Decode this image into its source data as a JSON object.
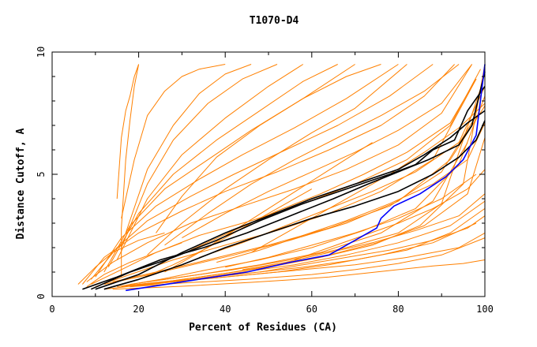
{
  "chart_data": {
    "type": "line",
    "title": "T1070-D4",
    "xlabel": "Percent of Residues (CA)",
    "ylabel": "Distance Cutoff, A",
    "xlim": [
      0,
      100
    ],
    "ylim": [
      0,
      10
    ],
    "xticks": [
      0,
      20,
      40,
      60,
      80,
      100
    ],
    "yticks": [
      0,
      5,
      10
    ],
    "grid": false,
    "colors": {
      "orange": "#ff8000",
      "black": "#000000",
      "blue": "#0000ff"
    },
    "series": [
      {
        "color": "#ff8000",
        "x": [
          14,
          18,
          24,
          30,
          38,
          46,
          55,
          64,
          72,
          80,
          88,
          95,
          100
        ],
        "y": [
          0.3,
          0.33,
          0.37,
          0.42,
          0.5,
          0.58,
          0.68,
          0.8,
          0.95,
          1.1,
          1.25,
          1.35,
          1.5
        ]
      },
      {
        "color": "#ff8000",
        "x": [
          18,
          30,
          45,
          60,
          70,
          80,
          90,
          100
        ],
        "y": [
          0.4,
          0.55,
          0.7,
          0.9,
          1.1,
          1.35,
          1.7,
          2.4
        ]
      },
      {
        "color": "#ff8000",
        "x": [
          20,
          32,
          45,
          58,
          70,
          82,
          92,
          100
        ],
        "y": [
          0.5,
          0.7,
          0.95,
          1.2,
          1.5,
          1.9,
          2.6,
          3.6
        ]
      },
      {
        "color": "#ff8000",
        "x": [
          17,
          28,
          40,
          52,
          64,
          75,
          86,
          96,
          100
        ],
        "y": [
          0.45,
          0.65,
          0.95,
          1.3,
          1.7,
          2.2,
          2.9,
          4.2,
          6.5
        ]
      },
      {
        "color": "#ff8000",
        "x": [
          18,
          30,
          42,
          55,
          68,
          80,
          90,
          99
        ],
        "y": [
          0.5,
          0.8,
          1.1,
          1.5,
          2.0,
          2.6,
          3.8,
          8.5
        ]
      },
      {
        "color": "#ff8000",
        "x": [
          16,
          26,
          38,
          50,
          62,
          74,
          85,
          95,
          100
        ],
        "y": [
          0.4,
          0.6,
          0.9,
          1.2,
          1.6,
          2.1,
          2.9,
          4.6,
          9.5
        ]
      },
      {
        "color": "#ff8000",
        "x": [
          20,
          34,
          48,
          62,
          76,
          88,
          96
        ],
        "y": [
          0.55,
          0.9,
          1.3,
          1.8,
          2.6,
          3.9,
          6.3
        ]
      },
      {
        "color": "#ff8000",
        "x": [
          15,
          25,
          36,
          48,
          60,
          72,
          84,
          94,
          100
        ],
        "y": [
          0.4,
          0.7,
          1.1,
          1.5,
          2.0,
          2.7,
          3.6,
          5.4,
          8.2
        ]
      },
      {
        "color": "#ff8000",
        "x": [
          12,
          20,
          30,
          42,
          55,
          68,
          80,
          92,
          100
        ],
        "y": [
          0.5,
          0.8,
          1.2,
          1.7,
          2.3,
          3.0,
          3.9,
          5.6,
          7.8
        ]
      },
      {
        "color": "#ff8000",
        "x": [
          14,
          24,
          36,
          50,
          64,
          78,
          90,
          98
        ],
        "y": [
          0.6,
          1.0,
          1.5,
          2.1,
          2.8,
          3.7,
          5.1,
          7.4
        ]
      },
      {
        "color": "#ff8000",
        "x": [
          10,
          18,
          28,
          40,
          52,
          64,
          76,
          88,
          98
        ],
        "y": [
          0.4,
          0.9,
          1.5,
          2.1,
          2.7,
          3.4,
          4.3,
          5.6,
          8.9
        ]
      },
      {
        "color": "#ff8000",
        "x": [
          9,
          16,
          24,
          34,
          46,
          58,
          70,
          82,
          92,
          99
        ],
        "y": [
          0.5,
          1.1,
          1.8,
          2.5,
          3.1,
          3.8,
          4.6,
          5.6,
          7.0,
          9.3
        ]
      },
      {
        "color": "#ff8000",
        "x": [
          8,
          14,
          22,
          32,
          44,
          56,
          68,
          80,
          90,
          97
        ],
        "y": [
          0.6,
          1.4,
          2.2,
          3.0,
          3.7,
          4.4,
          5.2,
          6.2,
          7.5,
          9.5
        ]
      },
      {
        "color": "#ff8000",
        "x": [
          7,
          12,
          20,
          30,
          40,
          52,
          64,
          76,
          86,
          93
        ],
        "y": [
          0.5,
          1.6,
          2.6,
          3.5,
          4.3,
          5.1,
          6.0,
          7.0,
          8.2,
          9.5
        ]
      },
      {
        "color": "#ff8000",
        "x": [
          9,
          15,
          22,
          32,
          42,
          54,
          66,
          78,
          88
        ],
        "y": [
          0.7,
          2.0,
          3.1,
          4.1,
          5.0,
          6.0,
          7.0,
          8.2,
          9.5
        ]
      },
      {
        "color": "#ff8000",
        "x": [
          10,
          16,
          24,
          34,
          44,
          56,
          68,
          80
        ],
        "y": [
          0.8,
          2.4,
          3.7,
          4.8,
          5.8,
          6.9,
          8.1,
          9.5
        ]
      },
      {
        "color": "#ff8000",
        "x": [
          12,
          18,
          26,
          36,
          46,
          58,
          70
        ],
        "y": [
          1.0,
          2.9,
          4.4,
          5.6,
          6.8,
          8.1,
          9.5
        ]
      },
      {
        "color": "#ff8000",
        "x": [
          13,
          20,
          28,
          38,
          48,
          58,
          66
        ],
        "y": [
          1.2,
          3.4,
          5.0,
          6.4,
          7.6,
          8.8,
          9.5
        ]
      },
      {
        "color": "#ff8000",
        "x": [
          15,
          22,
          30,
          40,
          50,
          58
        ],
        "y": [
          1.5,
          4.0,
          5.8,
          7.3,
          8.6,
          9.5
        ]
      },
      {
        "color": "#ff8000",
        "x": [
          16,
          22,
          28,
          36,
          44,
          52
        ],
        "y": [
          2.0,
          4.6,
          6.4,
          7.9,
          8.9,
          9.5
        ]
      },
      {
        "color": "#ff8000",
        "x": [
          17,
          22,
          28,
          34,
          40,
          46
        ],
        "y": [
          2.6,
          5.2,
          7.0,
          8.3,
          9.1,
          9.5
        ]
      },
      {
        "color": "#ff8000",
        "x": [
          16,
          19,
          22,
          26,
          30,
          34,
          40
        ],
        "y": [
          3.2,
          5.6,
          7.4,
          8.4,
          9.0,
          9.3,
          9.5
        ]
      },
      {
        "color": "#ff8000",
        "x": [
          15,
          16,
          17,
          18,
          19,
          20
        ],
        "y": [
          4.0,
          6.5,
          7.6,
          8.2,
          9.0,
          9.5
        ]
      },
      {
        "color": "#ff8000",
        "x": [
          16,
          16,
          17,
          18,
          19,
          20
        ],
        "y": [
          0.8,
          2.8,
          5.6,
          7.2,
          8.6,
          9.5
        ]
      },
      {
        "color": "#ff8000",
        "x": [
          24,
          30,
          38,
          48,
          58,
          68,
          76
        ],
        "y": [
          2.6,
          4.1,
          5.7,
          7.0,
          8.1,
          9.0,
          9.5
        ]
      },
      {
        "color": "#ff8000",
        "x": [
          22,
          30,
          40,
          50,
          60,
          70,
          82
        ],
        "y": [
          1.7,
          3.0,
          4.4,
          5.6,
          6.7,
          7.7,
          9.5
        ]
      },
      {
        "color": "#ff8000",
        "x": [
          26,
          36,
          46,
          56,
          66,
          76,
          86,
          94
        ],
        "y": [
          2.1,
          3.4,
          4.6,
          5.6,
          6.5,
          7.4,
          8.4,
          9.5
        ]
      },
      {
        "color": "#ff8000",
        "x": [
          30,
          40,
          50,
          60,
          70,
          80,
          90,
          97
        ],
        "y": [
          2.4,
          3.4,
          4.3,
          5.1,
          5.9,
          6.8,
          7.9,
          9.5
        ]
      },
      {
        "color": "#ff8000",
        "x": [
          32,
          42,
          52,
          62,
          72,
          82,
          92,
          98
        ],
        "y": [
          1.9,
          2.7,
          3.5,
          4.2,
          5.0,
          5.9,
          7.1,
          8.9
        ]
      },
      {
        "color": "#ff8000",
        "x": [
          34,
          44,
          54,
          64,
          74,
          84,
          94,
          100
        ],
        "y": [
          1.6,
          2.2,
          2.9,
          3.6,
          4.3,
          5.1,
          6.3,
          8.6
        ]
      },
      {
        "color": "#ff8000",
        "x": [
          38,
          48,
          58,
          68,
          78,
          88,
          96,
          100
        ],
        "y": [
          1.4,
          1.9,
          2.5,
          3.1,
          3.8,
          4.6,
          5.6,
          7.1
        ]
      },
      {
        "color": "#ff8000",
        "x": [
          40,
          50,
          60,
          70,
          80,
          90,
          98
        ],
        "y": [
          1.2,
          1.6,
          2.1,
          2.6,
          3.2,
          4.0,
          5.0
        ]
      },
      {
        "color": "#ff8000",
        "x": [
          44,
          54,
          64,
          74,
          84,
          94,
          100
        ],
        "y": [
          1.1,
          1.4,
          1.8,
          2.2,
          2.7,
          3.3,
          4.2
        ]
      },
      {
        "color": "#ff8000",
        "x": [
          48,
          58,
          68,
          78,
          88,
          96,
          100
        ],
        "y": [
          1.0,
          1.3,
          1.6,
          1.9,
          2.3,
          2.8,
          3.3
        ]
      },
      {
        "color": "#ff8000",
        "x": [
          20,
          28,
          36,
          44,
          52,
          60
        ],
        "y": [
          0.7,
          1.3,
          2.0,
          2.8,
          3.6,
          4.4
        ]
      },
      {
        "color": "#ff8000",
        "x": [
          26,
          34,
          42,
          50,
          58,
          66,
          74
        ],
        "y": [
          1.0,
          1.8,
          2.7,
          3.6,
          4.5,
          5.4,
          6.3
        ]
      },
      {
        "color": "#ff8000",
        "x": [
          46,
          54,
          62,
          70,
          78,
          86,
          94,
          100
        ],
        "y": [
          1.8,
          2.6,
          3.4,
          4.2,
          5.0,
          5.9,
          6.9,
          7.9
        ]
      },
      {
        "color": "#ff8000",
        "x": [
          56,
          64,
          72,
          80,
          88,
          96,
          100
        ],
        "y": [
          1.5,
          2.0,
          2.5,
          3.0,
          3.6,
          4.4,
          5.2
        ]
      },
      {
        "color": "#ff8000",
        "x": [
          12,
          22,
          34,
          46,
          58,
          70,
          82,
          94,
          100
        ],
        "y": [
          0.3,
          0.5,
          0.7,
          0.9,
          1.1,
          1.3,
          1.6,
          2.0,
          2.6
        ]
      },
      {
        "color": "#ff8000",
        "x": [
          18,
          28,
          40,
          52,
          64,
          76,
          88,
          98
        ],
        "y": [
          0.4,
          0.6,
          0.8,
          1.0,
          1.3,
          1.7,
          2.2,
          3.0
        ]
      },
      {
        "color": "#ff8000",
        "x": [
          22,
          32,
          44,
          56,
          68,
          80,
          92,
          100
        ],
        "y": [
          0.5,
          0.7,
          1.0,
          1.3,
          1.7,
          2.2,
          2.9,
          3.9
        ]
      },
      {
        "color": "#ff8000",
        "x": [
          6,
          10,
          14,
          20,
          26
        ],
        "y": [
          0.5,
          1.2,
          1.8,
          2.3,
          2.6
        ]
      },
      {
        "color": "#ff8000",
        "x": [
          8,
          12,
          18,
          24,
          30
        ],
        "y": [
          0.4,
          0.9,
          1.4,
          1.8,
          2.2
        ]
      },
      {
        "color": "#000000",
        "x": [
          7,
          15,
          25,
          35,
          45,
          55,
          65,
          73,
          80,
          87,
          94,
          97,
          100
        ],
        "y": [
          0.3,
          0.8,
          1.5,
          2.0,
          2.6,
          3.3,
          4.0,
          4.6,
          5.1,
          5.6,
          6.2,
          7.0,
          9.2
        ]
      },
      {
        "color": "#000000",
        "x": [
          9,
          18,
          28,
          38,
          48,
          58,
          68,
          78,
          84,
          88,
          93,
          96,
          100
        ],
        "y": [
          0.3,
          1.0,
          1.6,
          2.3,
          3.1,
          3.8,
          4.4,
          5.0,
          5.4,
          6.0,
          6.4,
          7.6,
          8.6
        ]
      },
      {
        "color": "#000000",
        "x": [
          10,
          20,
          30,
          40,
          50,
          60,
          70,
          80,
          86,
          92,
          96,
          100
        ],
        "y": [
          0.3,
          0.9,
          1.8,
          2.6,
          3.3,
          4.0,
          4.6,
          5.2,
          5.8,
          6.5,
          7.1,
          7.6
        ]
      },
      {
        "color": "#000000",
        "x": [
          12,
          20,
          30,
          40,
          50,
          60,
          70,
          80,
          88,
          94,
          98,
          100
        ],
        "y": [
          0.3,
          0.7,
          1.3,
          2.0,
          2.6,
          3.2,
          3.7,
          4.3,
          5.0,
          5.7,
          6.4,
          7.2
        ]
      },
      {
        "color": "#0000ff",
        "x": [
          17,
          30,
          45,
          55,
          64,
          70,
          75,
          76,
          79,
          85,
          91,
          95,
          98,
          100
        ],
        "y": [
          0.25,
          0.6,
          1.0,
          1.4,
          1.7,
          2.3,
          2.8,
          3.2,
          3.7,
          4.2,
          4.9,
          5.6,
          6.6,
          9.5
        ]
      }
    ]
  }
}
